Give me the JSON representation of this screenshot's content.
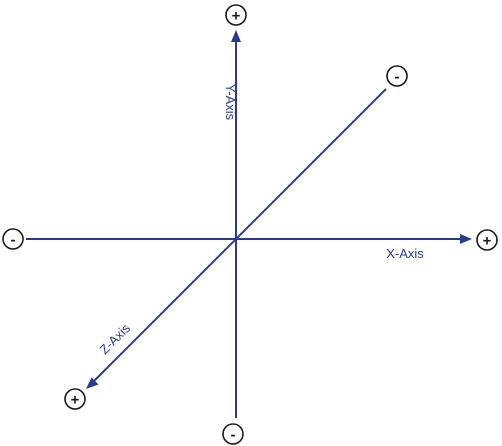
{
  "diagram": {
    "colors": {
      "axis": "#2b3a8f",
      "sign_outline": "#1a1a1a",
      "background": "#ffffff"
    },
    "axes": {
      "x": {
        "label": "X-Axis",
        "positive_sign": "+",
        "negative_sign": "-"
      },
      "y": {
        "label": "Y-Axis",
        "positive_sign": "+",
        "negative_sign": "-"
      },
      "z": {
        "label": "Z-Axis",
        "positive_sign": "+",
        "negative_sign": "-"
      }
    }
  }
}
